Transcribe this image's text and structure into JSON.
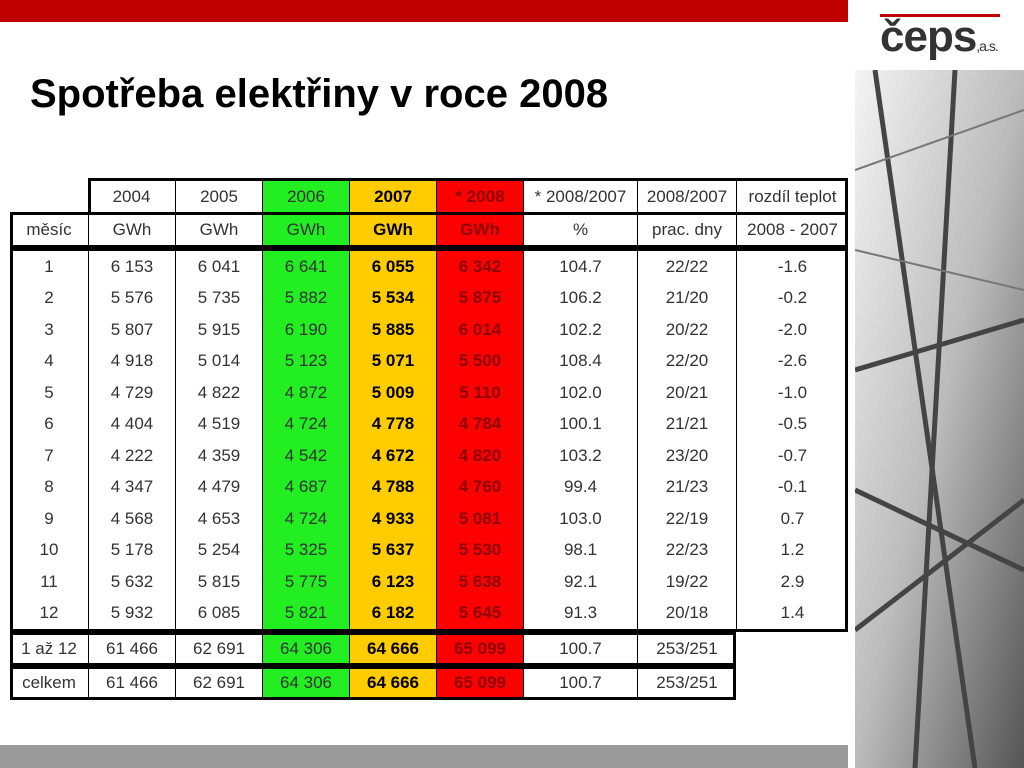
{
  "header": {
    "title": "Spotřeba elektřiny v roce 2008",
    "logo": "čeps",
    "logo_suffix": ",a.s."
  },
  "table": {
    "header_row1": [
      "2004",
      "2005",
      "2006",
      "2007",
      "* 2008",
      "* 2008/2007",
      "2008/2007",
      "rozdíl teplot"
    ],
    "header_row2": [
      "měsíc",
      "GWh",
      "GWh",
      "GWh",
      "GWh",
      "GWh",
      "%",
      "prac. dny",
      "2008 - 2007"
    ],
    "rows": [
      [
        "1",
        "6 153",
        "6 041",
        "6 641",
        "6 055",
        "6 342",
        "104.7",
        "22/22",
        "-1.6"
      ],
      [
        "2",
        "5 576",
        "5 735",
        "5 882",
        "5 534",
        "5 875",
        "106.2",
        "21/20",
        "-0.2"
      ],
      [
        "3",
        "5 807",
        "5 915",
        "6 190",
        "5 885",
        "6 014",
        "102.2",
        "20/22",
        "-2.0"
      ],
      [
        "4",
        "4 918",
        "5 014",
        "5 123",
        "5 071",
        "5 500",
        "108.4",
        "22/20",
        "-2.6"
      ],
      [
        "5",
        "4 729",
        "4 822",
        "4 872",
        "5 009",
        "5 110",
        "102.0",
        "20/21",
        "-1.0"
      ],
      [
        "6",
        "4 404",
        "4 519",
        "4 724",
        "4 778",
        "4 784",
        "100.1",
        "21/21",
        "-0.5"
      ],
      [
        "7",
        "4 222",
        "4 359",
        "4 542",
        "4 672",
        "4 820",
        "103.2",
        "23/20",
        "-0.7"
      ],
      [
        "8",
        "4 347",
        "4 479",
        "4 687",
        "4 788",
        "4 760",
        "99.4",
        "21/23",
        "-0.1"
      ],
      [
        "9",
        "4 568",
        "4 653",
        "4 724",
        "4 933",
        "5 081",
        "103.0",
        "22/19",
        "0.7"
      ],
      [
        "10",
        "5 178",
        "5 254",
        "5 325",
        "5 637",
        "5 530",
        "98.1",
        "22/23",
        "1.2"
      ],
      [
        "11",
        "5 632",
        "5 815",
        "5 775",
        "6 123",
        "5 638",
        "92.1",
        "19/22",
        "2.9"
      ],
      [
        "12",
        "5 932",
        "6 085",
        "5 821",
        "6 182",
        "5 645",
        "91.3",
        "20/18",
        "1.4"
      ]
    ],
    "sum_rows": [
      [
        "1 až 12",
        "61 466",
        "62 691",
        "64 306",
        "64 666",
        "65 099",
        "100.7",
        "253/251"
      ],
      [
        "celkem",
        "61 466",
        "62 691",
        "64 306",
        "64 666",
        "65 099",
        "100.7",
        "253/251"
      ]
    ]
  }
}
